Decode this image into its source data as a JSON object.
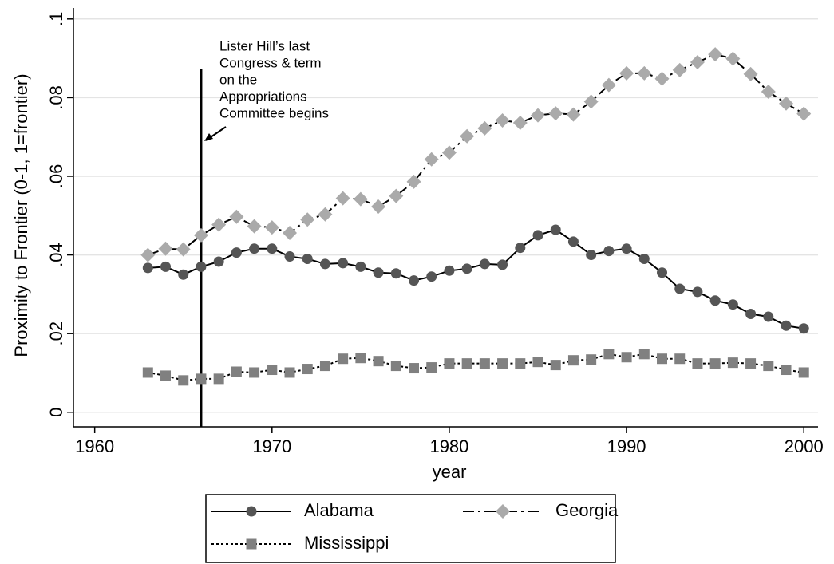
{
  "chart_data": {
    "type": "line",
    "y_label": "Proximity to Frontier (0-1, 1=frontier)",
    "x_label": "year",
    "x": [
      1963,
      1964,
      1965,
      1966,
      1967,
      1968,
      1969,
      1970,
      1971,
      1972,
      1973,
      1974,
      1975,
      1976,
      1977,
      1978,
      1979,
      1980,
      1981,
      1982,
      1983,
      1984,
      1985,
      1986,
      1987,
      1988,
      1989,
      1990,
      1991,
      1992,
      1993,
      1994,
      1995,
      1996,
      1997,
      1998,
      1999,
      2000
    ],
    "series": [
      {
        "name": "Alabama",
        "color": "#555555",
        "line_color": "#000000",
        "marker": "circle",
        "line_style": "solid",
        "values": [
          0.0367,
          0.037,
          0.035,
          0.037,
          0.0383,
          0.0406,
          0.0416,
          0.0416,
          0.0396,
          0.039,
          0.0377,
          0.0379,
          0.037,
          0.0355,
          0.0353,
          0.0335,
          0.0345,
          0.036,
          0.0365,
          0.0377,
          0.0375,
          0.0418,
          0.045,
          0.0464,
          0.0434,
          0.04,
          0.041,
          0.0416,
          0.039,
          0.0355,
          0.0314,
          0.0306,
          0.0284,
          0.0274,
          0.025,
          0.0243,
          0.022,
          0.0213
        ]
      },
      {
        "name": "Georgia",
        "color": "#aaaaaa",
        "line_color": "#000000",
        "marker": "diamond",
        "line_style": "dashdot",
        "values": [
          0.04,
          0.0416,
          0.0414,
          0.045,
          0.0477,
          0.0497,
          0.0473,
          0.047,
          0.0456,
          0.049,
          0.0503,
          0.0544,
          0.0542,
          0.0523,
          0.055,
          0.0586,
          0.0643,
          0.066,
          0.0702,
          0.0722,
          0.0742,
          0.0736,
          0.0755,
          0.076,
          0.0757,
          0.079,
          0.0832,
          0.0862,
          0.0862,
          0.0848,
          0.087,
          0.089,
          0.091,
          0.0899,
          0.086,
          0.0815,
          0.0785,
          0.0759
        ]
      },
      {
        "name": "Mississippi",
        "color": "#808080",
        "line_color": "#000000",
        "marker": "square",
        "line_style": "dotted",
        "values": [
          0.0101,
          0.0093,
          0.0081,
          0.0085,
          0.0085,
          0.0103,
          0.0101,
          0.0108,
          0.0101,
          0.011,
          0.0118,
          0.0136,
          0.0138,
          0.013,
          0.0118,
          0.0112,
          0.0114,
          0.0124,
          0.0124,
          0.0124,
          0.0124,
          0.0124,
          0.0128,
          0.012,
          0.0132,
          0.0134,
          0.0148,
          0.014,
          0.0148,
          0.0136,
          0.0136,
          0.0124,
          0.0124,
          0.0126,
          0.0124,
          0.0118,
          0.0108,
          0.0101
        ]
      }
    ],
    "xlim": [
      1958.8,
      2000.8
    ],
    "xticks": [
      1960,
      1970,
      1980,
      1990,
      2000
    ],
    "ylim": [
      -0.0037,
      0.1028
    ],
    "yticks": [
      {
        "value": 0,
        "label": "0"
      },
      {
        "value": 0.02,
        "label": ".02"
      },
      {
        "value": 0.04,
        "label": ".04"
      },
      {
        "value": 0.06,
        "label": ".06"
      },
      {
        "value": 0.08,
        "label": ".08"
      },
      {
        "value": 0.1,
        "label": ".1"
      }
    ],
    "grid": true,
    "legend": "bottom",
    "vline": 1966,
    "annotation": [
      "Lister Hill’s last",
      "Congress & term",
      "on the",
      "Appropriations",
      "Committee begins"
    ]
  }
}
